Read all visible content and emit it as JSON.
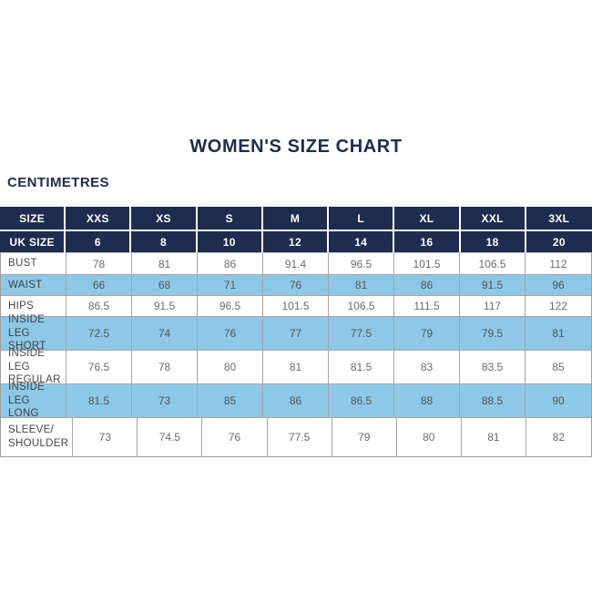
{
  "page": {
    "title": "WOMEN'S SIZE CHART",
    "units_label": "CENTIMETRES"
  },
  "colors": {
    "navy": "#1e2c4f",
    "light_blue": "#8dc8e8",
    "white_row": "#ffffff",
    "number_text": "#6a6b6e",
    "label_text": "#47484b",
    "grid_border": "#a5a5a7"
  },
  "chart_data": {
    "type": "table",
    "title": "WOMEN'S SIZE CHART",
    "units_label": "CENTIMETRES",
    "size_header": {
      "row_label": "SIZE",
      "values": [
        "XXS",
        "XS",
        "S",
        "M",
        "L",
        "XL",
        "XXL",
        "3XL"
      ]
    },
    "uk_size_header": {
      "row_label": "UK SIZE",
      "values": [
        6,
        8,
        10,
        12,
        14,
        16,
        18,
        20
      ]
    },
    "measurement_rows": [
      {
        "label": "BUST",
        "values": [
          78,
          81,
          86,
          91.4,
          96.5,
          101.5,
          106.5,
          112
        ]
      },
      {
        "label": "WAIST",
        "values": [
          66,
          68,
          71,
          76,
          81,
          86,
          91.5,
          96
        ]
      },
      {
        "label": "HIPS",
        "values": [
          86.5,
          91.5,
          96.5,
          101.5,
          106.5,
          111.5,
          117,
          122
        ]
      },
      {
        "label": "INSIDE LEG\nSHORT",
        "values": [
          72.5,
          74,
          76,
          77,
          77.5,
          79,
          79.5,
          81
        ]
      },
      {
        "label": "INSIDE LEG\nREGULAR",
        "values": [
          76.5,
          78,
          80,
          81,
          81.5,
          83,
          83.5,
          85
        ]
      },
      {
        "label": "INSIDE LEG\nLONG",
        "values": [
          81.5,
          73,
          85,
          86,
          86.5,
          88,
          88.5,
          90
        ]
      },
      {
        "label": "SLEEVE/\nSHOULDER",
        "values": [
          73,
          74.5,
          76,
          77.5,
          79,
          80,
          81,
          82
        ]
      }
    ]
  }
}
